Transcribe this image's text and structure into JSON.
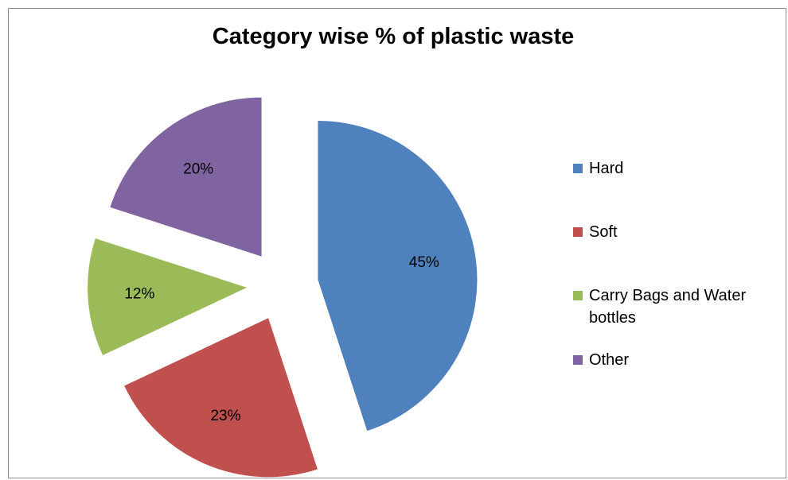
{
  "chart_data": {
    "type": "pie",
    "title": "Category wise % of plastic waste",
    "slices": [
      {
        "name": "Hard",
        "value": 45,
        "label": "45%",
        "color": "#4f81bd"
      },
      {
        "name": "Soft",
        "value": 23,
        "label": "23%",
        "color": "#c0504d"
      },
      {
        "name": "Carry Bags and Water bottles",
        "value": 12,
        "label": "12%",
        "color": "#9bbb59"
      },
      {
        "name": "Other",
        "value": 20,
        "label": "20%",
        "color": "#8064a2"
      }
    ],
    "start_angle": "12 o'clock",
    "direction": "clockwise",
    "exploded": true,
    "legend": "right"
  }
}
